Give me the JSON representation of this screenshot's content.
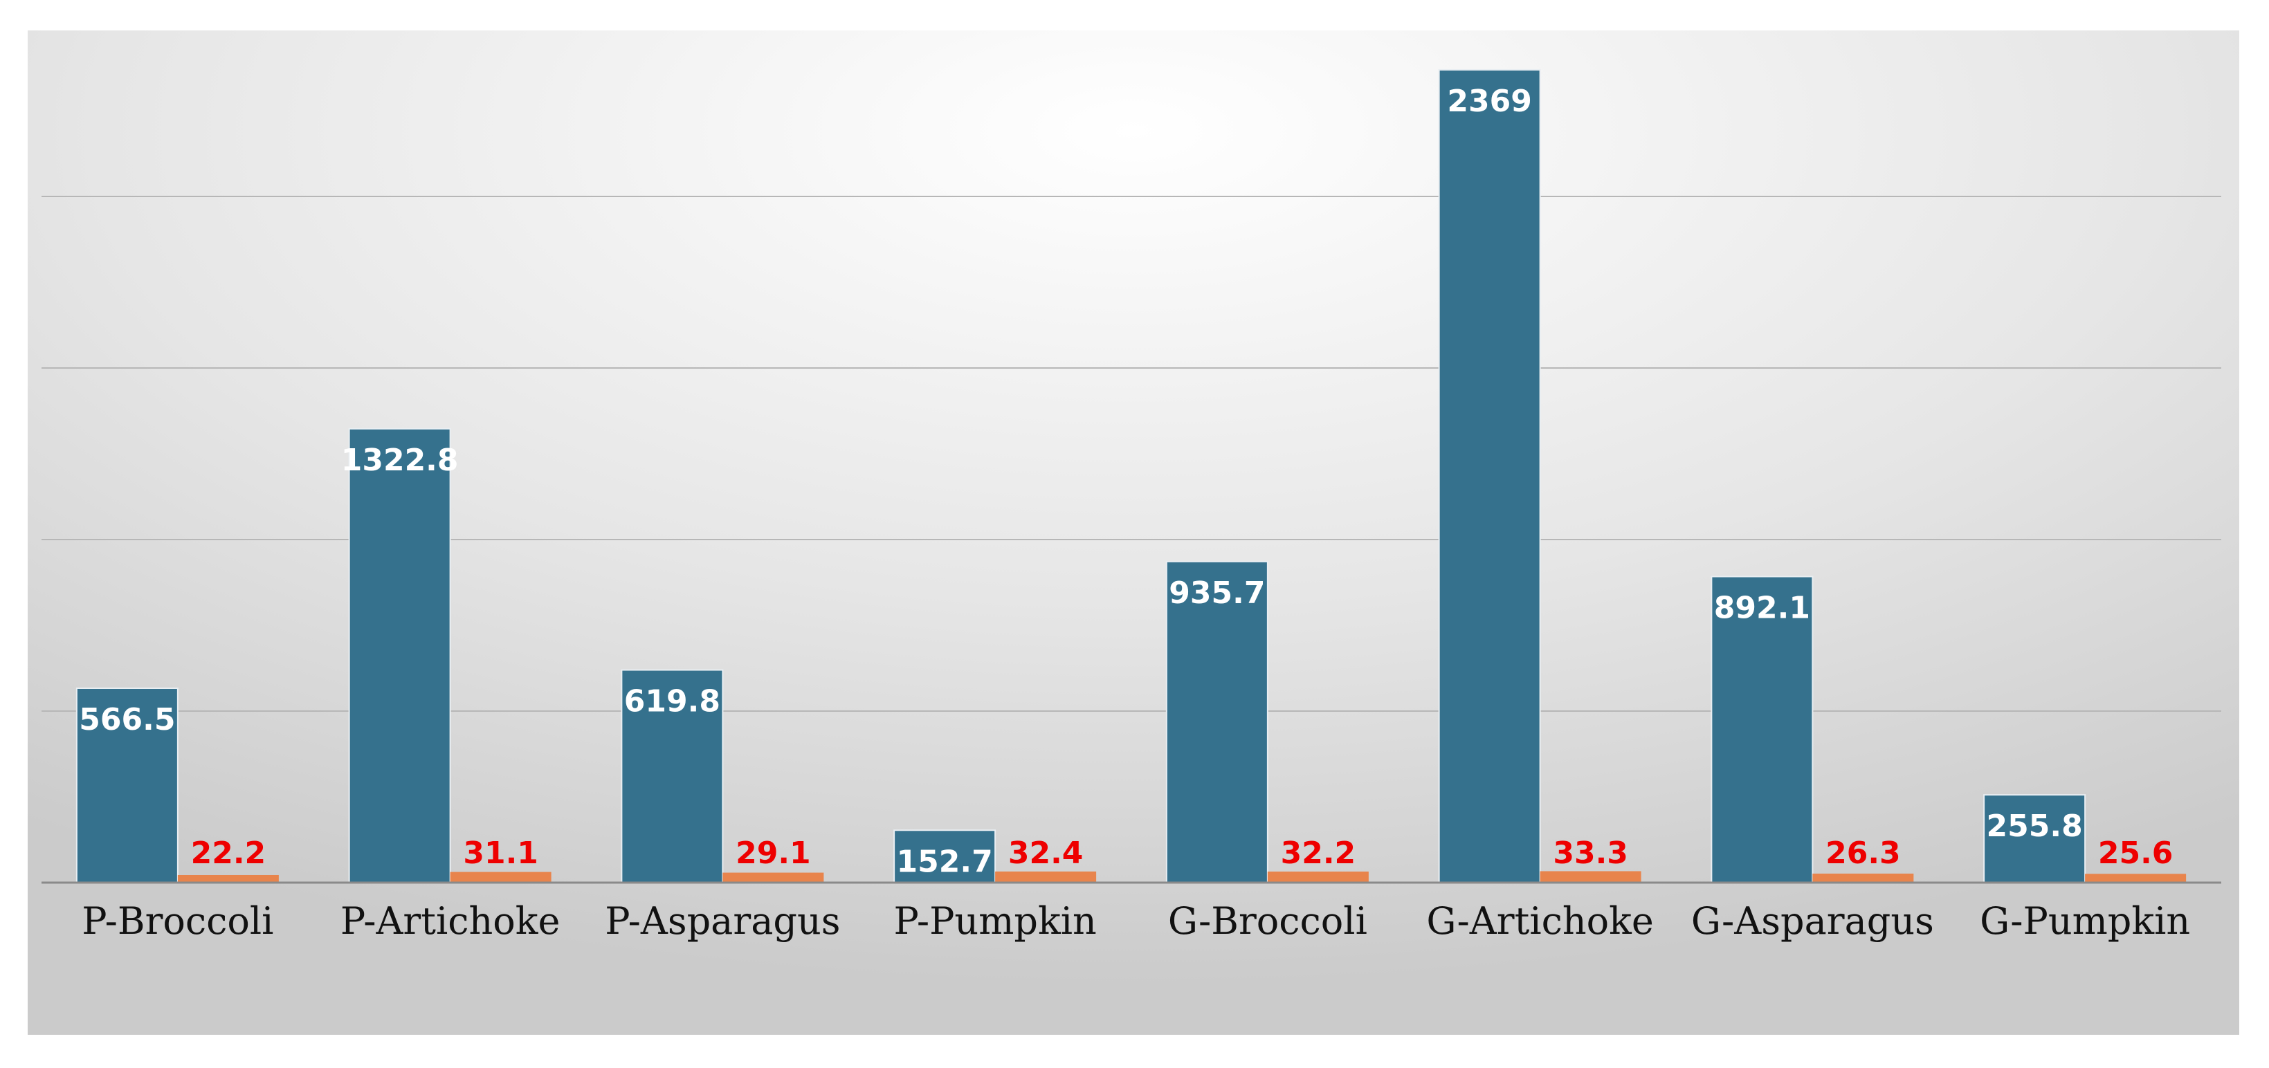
{
  "chart_data": {
    "type": "bar",
    "categories": [
      "P-Broccoli",
      "P-Artichoke",
      "P-Asparagus",
      "P-Pumpkin",
      "G-Broccoli",
      "G-Artichoke",
      "G-Asparagus",
      "G-Pumpkin"
    ],
    "series": [
      {
        "values": [
          566.5,
          1322.8,
          619.8,
          152.7,
          935.7,
          2369,
          892.1,
          255.8
        ],
        "color": "#35718d",
        "label_color": "#ffffff"
      },
      {
        "values": [
          22.2,
          31.1,
          29.1,
          32.4,
          32.2,
          33.3,
          26.3,
          25.6
        ],
        "color": "#e8844c",
        "label_color": "#ee0000"
      }
    ],
    "title": "",
    "xlabel": "",
    "ylabel": "",
    "ylim": [
      0,
      2500
    ],
    "gridlines": [
      0,
      500,
      1000,
      1500,
      2000,
      2500
    ],
    "grid": true,
    "legend": "none",
    "y_axis_labels_shown": false
  }
}
